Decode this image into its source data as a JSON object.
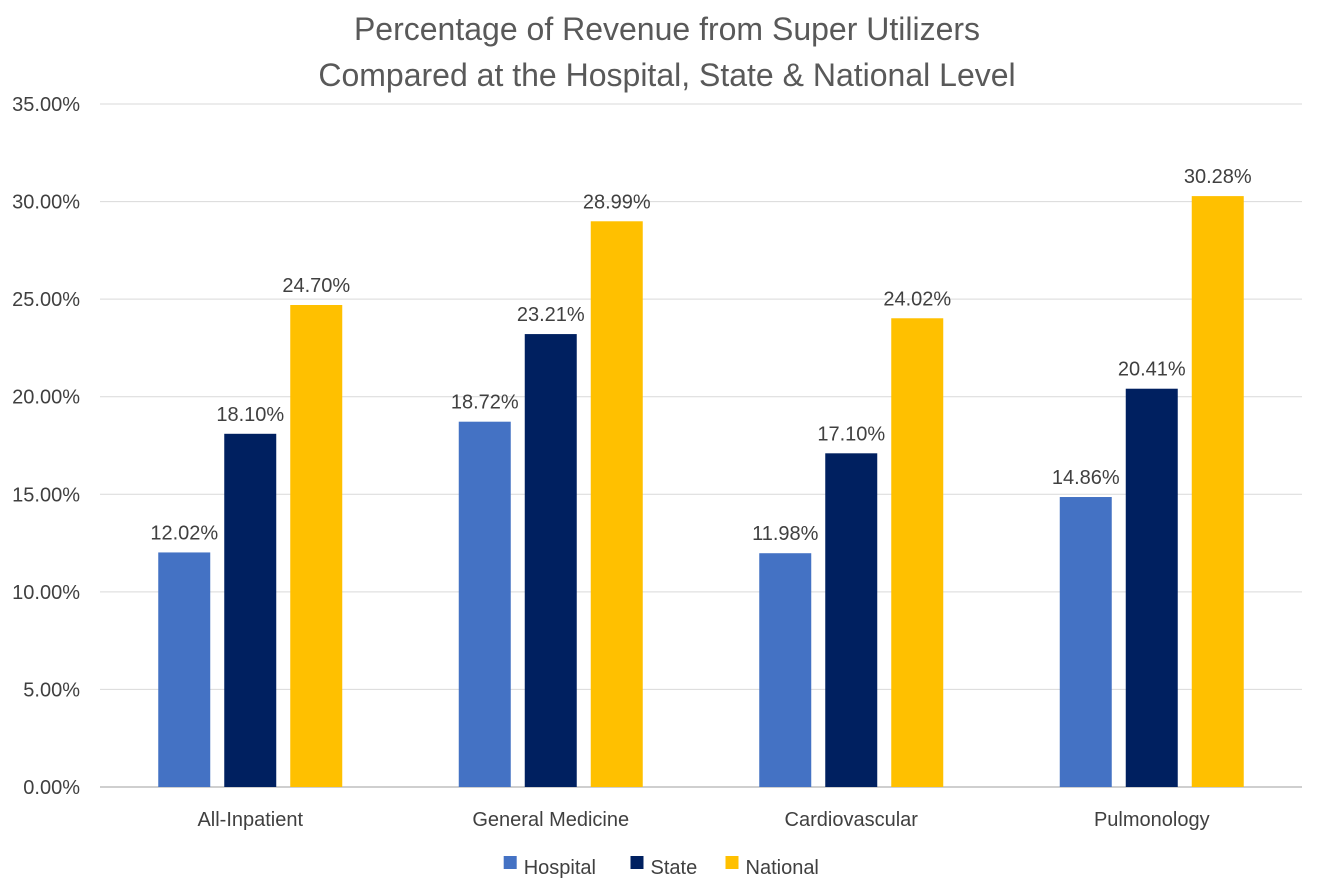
{
  "chart_data": {
    "type": "bar",
    "title_lines": [
      "Percentage of Revenue from Super Utilizers",
      "Compared at the Hospital, State & National Level"
    ],
    "categories": [
      "All-Inpatient",
      "General Medicine",
      "Cardiovascular",
      "Pulmonology"
    ],
    "series": [
      {
        "name": "Hospital",
        "color": "#4472C4",
        "values": [
          12.02,
          18.72,
          11.98,
          14.86
        ]
      },
      {
        "name": "State",
        "color": "#002060",
        "values": [
          18.1,
          23.21,
          17.1,
          20.41
        ]
      },
      {
        "name": "National",
        "color": "#FFC000",
        "values": [
          24.7,
          28.99,
          24.02,
          30.28
        ]
      }
    ],
    "data_labels": [
      [
        "12.02%",
        "18.72%",
        "11.98%",
        "14.86%"
      ],
      [
        "18.10%",
        "23.21%",
        "17.10%",
        "20.41%"
      ],
      [
        "24.70%",
        "28.99%",
        "24.02%",
        "30.28%"
      ]
    ],
    "y_ticks": [
      "0.00%",
      "5.00%",
      "10.00%",
      "15.00%",
      "20.00%",
      "25.00%",
      "30.00%",
      "35.00%"
    ],
    "ylim": [
      0,
      35
    ],
    "y_step": 5,
    "grid": true,
    "legend_position": "bottom"
  }
}
